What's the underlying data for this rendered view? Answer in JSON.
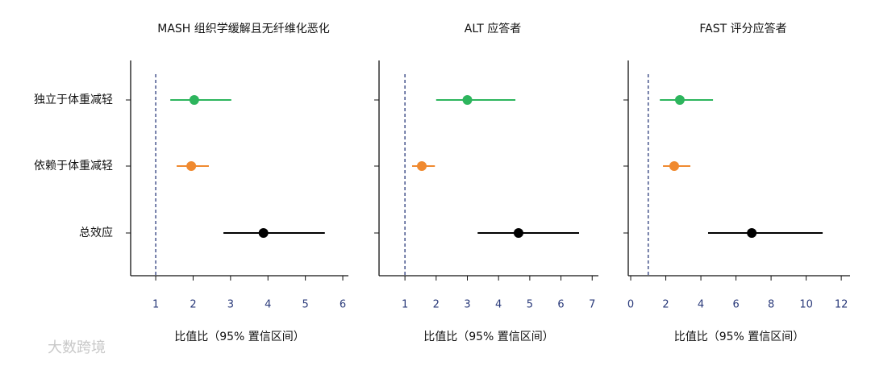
{
  "chart_data": [
    {
      "type": "forest",
      "title": "MASH 组织学缓解且无纤维化恶化",
      "xlabel": "比值比（95% 置信区间）",
      "categories": [
        "独立于体重减轻",
        "依赖于体重减轻",
        "总效应"
      ],
      "values": [
        2.03,
        1.95,
        3.88
      ],
      "lower": [
        1.39,
        1.56,
        2.81
      ],
      "upper": [
        3.02,
        2.42,
        5.52
      ],
      "colors": [
        "#2db55d",
        "#f08a30",
        "#000000"
      ],
      "ref_line": 1,
      "xlim": [
        0.33,
        6.15
      ],
      "xticks": [
        1,
        2,
        3,
        4,
        5,
        6
      ]
    },
    {
      "type": "forest",
      "title": "ALT 应答者",
      "xlabel": "比值比（95% 置信区间）",
      "values": [
        3.0,
        1.54,
        4.64
      ],
      "lower": [
        2.0,
        1.23,
        3.33
      ],
      "upper": [
        4.54,
        1.96,
        6.58
      ],
      "colors": [
        "#2db55d",
        "#f08a30",
        "#000000"
      ],
      "ref_line": 1,
      "xlim": [
        0.17,
        7.2
      ],
      "xticks": [
        1,
        2,
        3,
        4,
        5,
        6,
        7
      ]
    },
    {
      "type": "forest",
      "title": "FAST 评分应答者",
      "xlabel": "比值比（95% 置信区间）",
      "values": [
        2.8,
        2.48,
        6.9
      ],
      "lower": [
        1.66,
        1.84,
        4.41
      ],
      "upper": [
        4.69,
        3.4,
        10.94
      ],
      "colors": [
        "#2db55d",
        "#f08a30",
        "#000000"
      ],
      "ref_line": 1,
      "xlim": [
        -0.14,
        12.5
      ],
      "xticks": [
        0,
        2,
        4,
        6,
        8,
        10,
        12
      ]
    }
  ],
  "watermark": "大数跨境"
}
